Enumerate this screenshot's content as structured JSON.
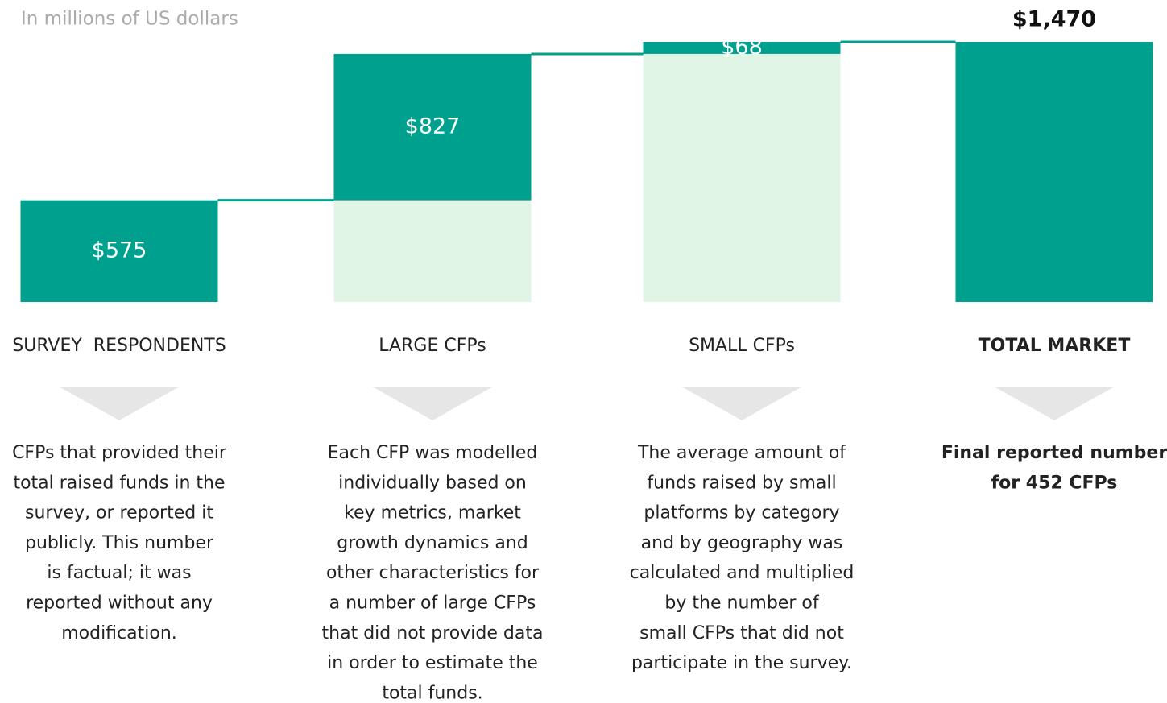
{
  "chart_data": {
    "type": "waterfall",
    "subtitle": "In millions of US dollars",
    "categories": [
      "SURVEY  RESPONDENTS",
      "LARGE CFPs",
      "SMALL CFPs",
      "TOTAL MARKET"
    ],
    "values": [
      575,
      827,
      68,
      1470
    ],
    "value_labels": [
      "$575",
      "$827",
      "$68",
      "$1,470"
    ],
    "is_total": [
      false,
      false,
      false,
      true
    ],
    "color": "#00a08e",
    "support_color": "#e0f5e6",
    "descriptions": [
      [
        "CFPs that provided their",
        "total raised funds in the",
        "survey, or reported it",
        "publicly. This number",
        "is factual; it was",
        "reported without any",
        "modification."
      ],
      [
        "Each CFP was modelled",
        "individually based on",
        "key metrics, market",
        "growth dynamics and",
        "other characteristics for",
        "a number of large CFPs",
        "that did not provide data",
        "in order to estimate the",
        "total funds."
      ],
      [
        "The average amount of",
        "funds raised by small",
        "platforms by category",
        "and by geography was",
        "calculated and multiplied",
        "by the number of",
        "small CFPs that did not",
        "participate in the survey."
      ],
      [
        "Final reported number",
        "for 452 CFPs"
      ]
    ]
  }
}
